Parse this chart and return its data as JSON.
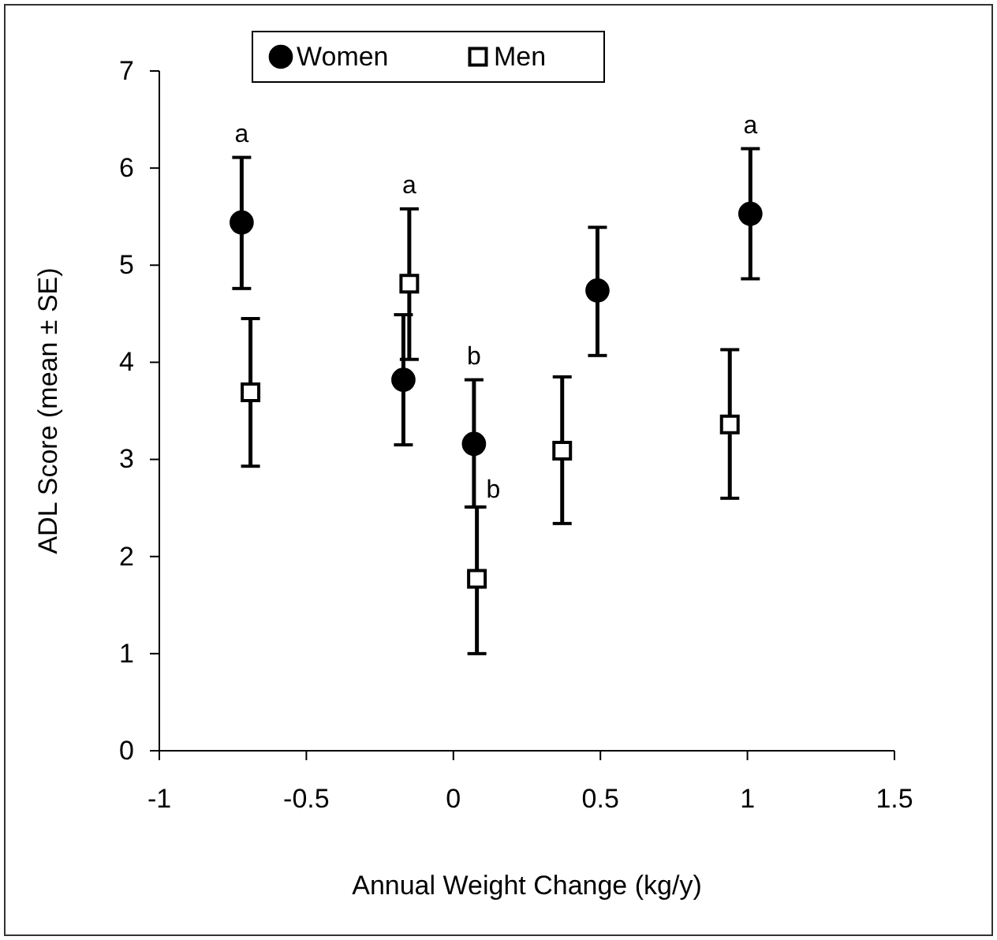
{
  "chart_data": {
    "type": "scatter",
    "xlabel": "Annual Weight Change (kg/y)",
    "ylabel": "ADL Score (mean ± SE)",
    "xlim": [
      -1,
      1.5
    ],
    "xticks": [
      -1,
      -0.5,
      0,
      0.5,
      1,
      1.5
    ],
    "ylim": [
      0,
      7
    ],
    "yticks": [
      0,
      1,
      2,
      3,
      4,
      5,
      6,
      7
    ],
    "grid": false,
    "legend": "top",
    "series": [
      {
        "name": "Women",
        "color": "#000000",
        "marker": "circle",
        "x": [
          -0.72,
          -0.17,
          0.07,
          0.49,
          1.01
        ],
        "values": [
          5.44,
          3.82,
          3.16,
          4.74,
          5.53
        ],
        "errors": [
          [
            4.76,
            6.11
          ],
          [
            3.15,
            4.49
          ],
          [
            2.51,
            3.82
          ],
          [
            4.07,
            5.39
          ],
          [
            4.86,
            6.2
          ]
        ]
      },
      {
        "name": "Men",
        "color": "#000000",
        "marker": "square",
        "x": [
          -0.69,
          -0.15,
          0.08,
          0.37,
          0.94
        ],
        "values": [
          3.69,
          4.81,
          1.77,
          3.09,
          3.36
        ],
        "errors": [
          [
            2.93,
            4.45
          ],
          [
            4.03,
            5.58
          ],
          [
            1,
            2.51
          ],
          [
            2.34,
            3.85
          ],
          [
            2.6,
            4.13
          ]
        ]
      }
    ],
    "annotations": [
      {
        "text": "a",
        "x": -0.72,
        "y": 5.44
      },
      {
        "text": "a",
        "x": -0.15,
        "y": 5.58
      },
      {
        "text": "b",
        "x": 0.07,
        "y": 3.16
      },
      {
        "text": "b",
        "x": 0.08,
        "y": 1.77
      },
      {
        "text": "a",
        "x": 1.01,
        "y": 5.53
      }
    ]
  }
}
